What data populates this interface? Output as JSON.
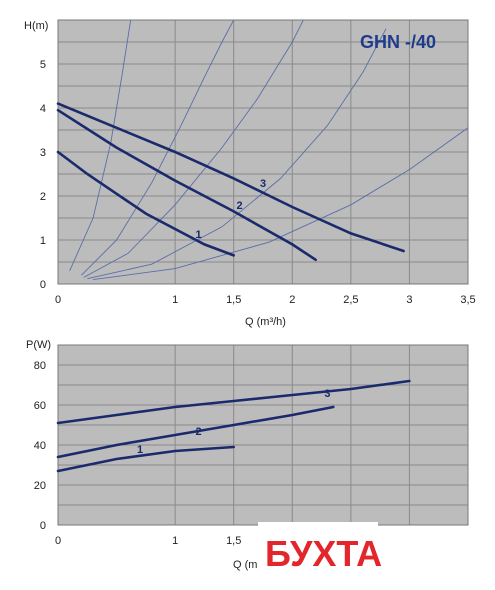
{
  "chart_data": [
    {
      "type": "line",
      "title": "GHN -/40",
      "xlabel": "Q (m³/h)",
      "ylabel": "H(m)",
      "xlim": [
        0,
        3.5
      ],
      "ylim": [
        0,
        6
      ],
      "x_ticks": [
        "0",
        "1",
        "1,5",
        "2",
        "2,5",
        "3",
        "3,5"
      ],
      "x_tick_values": [
        0,
        1,
        1.5,
        2,
        2.5,
        3,
        3.5
      ],
      "y_ticks": [
        "0",
        "1",
        "2",
        "3",
        "4",
        "5"
      ],
      "y_tick_values": [
        0,
        1,
        2,
        3,
        4,
        5
      ],
      "grid": true,
      "series": [
        {
          "name": "1",
          "x": [
            0,
            0.25,
            0.5,
            0.75,
            1.0,
            1.25,
            1.5
          ],
          "y": [
            3.0,
            2.5,
            2.05,
            1.6,
            1.25,
            0.9,
            0.65
          ]
        },
        {
          "name": "2",
          "x": [
            0,
            0.5,
            1.0,
            1.5,
            2.0,
            2.2
          ],
          "y": [
            3.95,
            3.1,
            2.35,
            1.65,
            0.9,
            0.55
          ]
        },
        {
          "name": "3",
          "x": [
            0,
            0.5,
            1.0,
            1.5,
            2.0,
            2.5,
            2.95
          ],
          "y": [
            4.1,
            3.55,
            3.0,
            2.4,
            1.75,
            1.15,
            0.75
          ]
        }
      ],
      "system_curves": [
        {
          "x": [
            0.1,
            0.3,
            0.45,
            0.55,
            0.65,
            0.73
          ],
          "y": [
            0.3,
            1.5,
            3.2,
            4.8,
            6.5,
            7.5
          ]
        },
        {
          "x": [
            0.2,
            0.5,
            0.8,
            1.05,
            1.25,
            1.4,
            1.6
          ],
          "y": [
            0.2,
            1.0,
            2.3,
            3.6,
            4.7,
            5.5,
            6.5
          ]
        },
        {
          "x": [
            0.22,
            0.6,
            1.0,
            1.4,
            1.7,
            2.0,
            2.15
          ],
          "y": [
            0.15,
            0.7,
            1.8,
            3.1,
            4.2,
            5.5,
            6.3
          ]
        },
        {
          "x": [
            0.25,
            0.8,
            1.4,
            1.9,
            2.3,
            2.6,
            2.8
          ],
          "y": [
            0.12,
            0.45,
            1.3,
            2.4,
            3.6,
            4.8,
            5.8
          ]
        },
        {
          "x": [
            0.3,
            1.0,
            1.8,
            2.5,
            3.0,
            3.5
          ],
          "y": [
            0.1,
            0.35,
            0.95,
            1.8,
            2.6,
            3.55
          ]
        }
      ]
    },
    {
      "type": "line",
      "title": "",
      "xlabel": "Q (m",
      "ylabel": "P(W)",
      "xlim": [
        0,
        3.5
      ],
      "ylim": [
        0,
        90
      ],
      "x_ticks": [
        "0",
        "1",
        "1,5"
      ],
      "x_tick_values": [
        0,
        1,
        1.5
      ],
      "y_ticks": [
        "0",
        "20",
        "40",
        "60",
        "80"
      ],
      "y_tick_values": [
        0,
        20,
        40,
        60,
        80
      ],
      "grid": true,
      "series": [
        {
          "name": "1",
          "x": [
            0,
            0.5,
            1.0,
            1.5
          ],
          "y": [
            27,
            33,
            37,
            39
          ]
        },
        {
          "name": "2",
          "x": [
            0,
            0.5,
            1.0,
            1.5,
            2.0,
            2.35
          ],
          "y": [
            34,
            40,
            45,
            50,
            55,
            59
          ]
        },
        {
          "name": "3",
          "x": [
            0,
            0.5,
            1.0,
            1.5,
            2.0,
            2.5,
            3.0
          ],
          "y": [
            51,
            55,
            59,
            62,
            65,
            68,
            72
          ]
        }
      ]
    }
  ],
  "logo": {
    "text": "БУХТА"
  },
  "colors": {
    "plot_bg": "#bcbcbc",
    "grid": "#8a8a8a",
    "curve": "#1a2a6c",
    "system_curve": "#5a6fa8",
    "title": "#1f3b8c",
    "logo": "#e3262b"
  }
}
